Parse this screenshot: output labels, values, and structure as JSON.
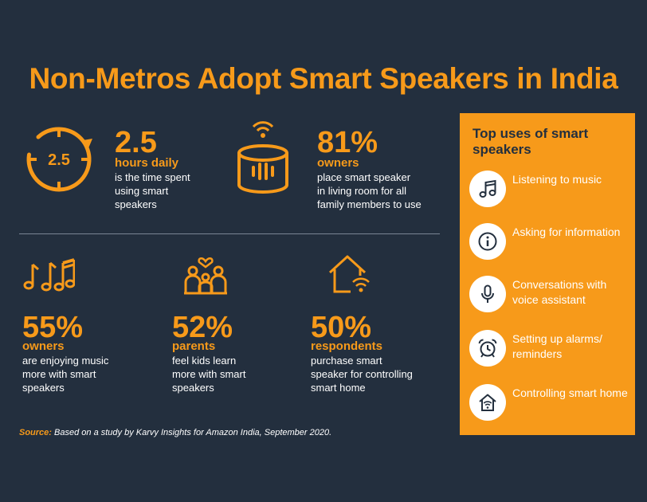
{
  "title": "Non-Metros Adopt Smart Speakers in India",
  "colors": {
    "background": "#232f3e",
    "accent": "#f79a1a",
    "text": "#ffffff"
  },
  "stats": [
    {
      "icon": "clock-cycle-icon",
      "icon_label": "2.5",
      "value": "2.5",
      "unit": "hours daily",
      "desc": [
        "is the time spent",
        "using smart",
        "speakers"
      ]
    },
    {
      "icon": "smart-speaker-icon",
      "value": "81%",
      "unit": "owners",
      "desc": [
        "place smart speaker",
        "in living room for all",
        "family members to use"
      ]
    },
    {
      "icon": "music-notes-icon",
      "value": "55%",
      "unit": "owners",
      "desc": [
        "are enjoying music",
        "more with smart",
        "speakers"
      ]
    },
    {
      "icon": "family-icon",
      "value": "52%",
      "unit": "parents",
      "desc": [
        "feel kids learn",
        "more with smart",
        "speakers"
      ]
    },
    {
      "icon": "smart-home-icon",
      "value": "50%",
      "unit": "respondents",
      "desc": [
        "purchase smart",
        "speaker for controlling",
        "smart home"
      ]
    }
  ],
  "panel": {
    "title": "Top uses of smart speakers",
    "uses": [
      {
        "icon": "music-note-icon",
        "label": "Listening to music"
      },
      {
        "icon": "info-icon",
        "label": "Asking for information"
      },
      {
        "icon": "microphone-icon",
        "label": "Conversations with voice assistant"
      },
      {
        "icon": "alarm-clock-icon",
        "label": "Setting up alarms/ reminders"
      },
      {
        "icon": "home-wifi-icon",
        "label": "Controlling smart home"
      }
    ]
  },
  "source": {
    "label": "Source:",
    "text": "Based on a study by Karvy Insights for Amazon India, September 2020."
  }
}
